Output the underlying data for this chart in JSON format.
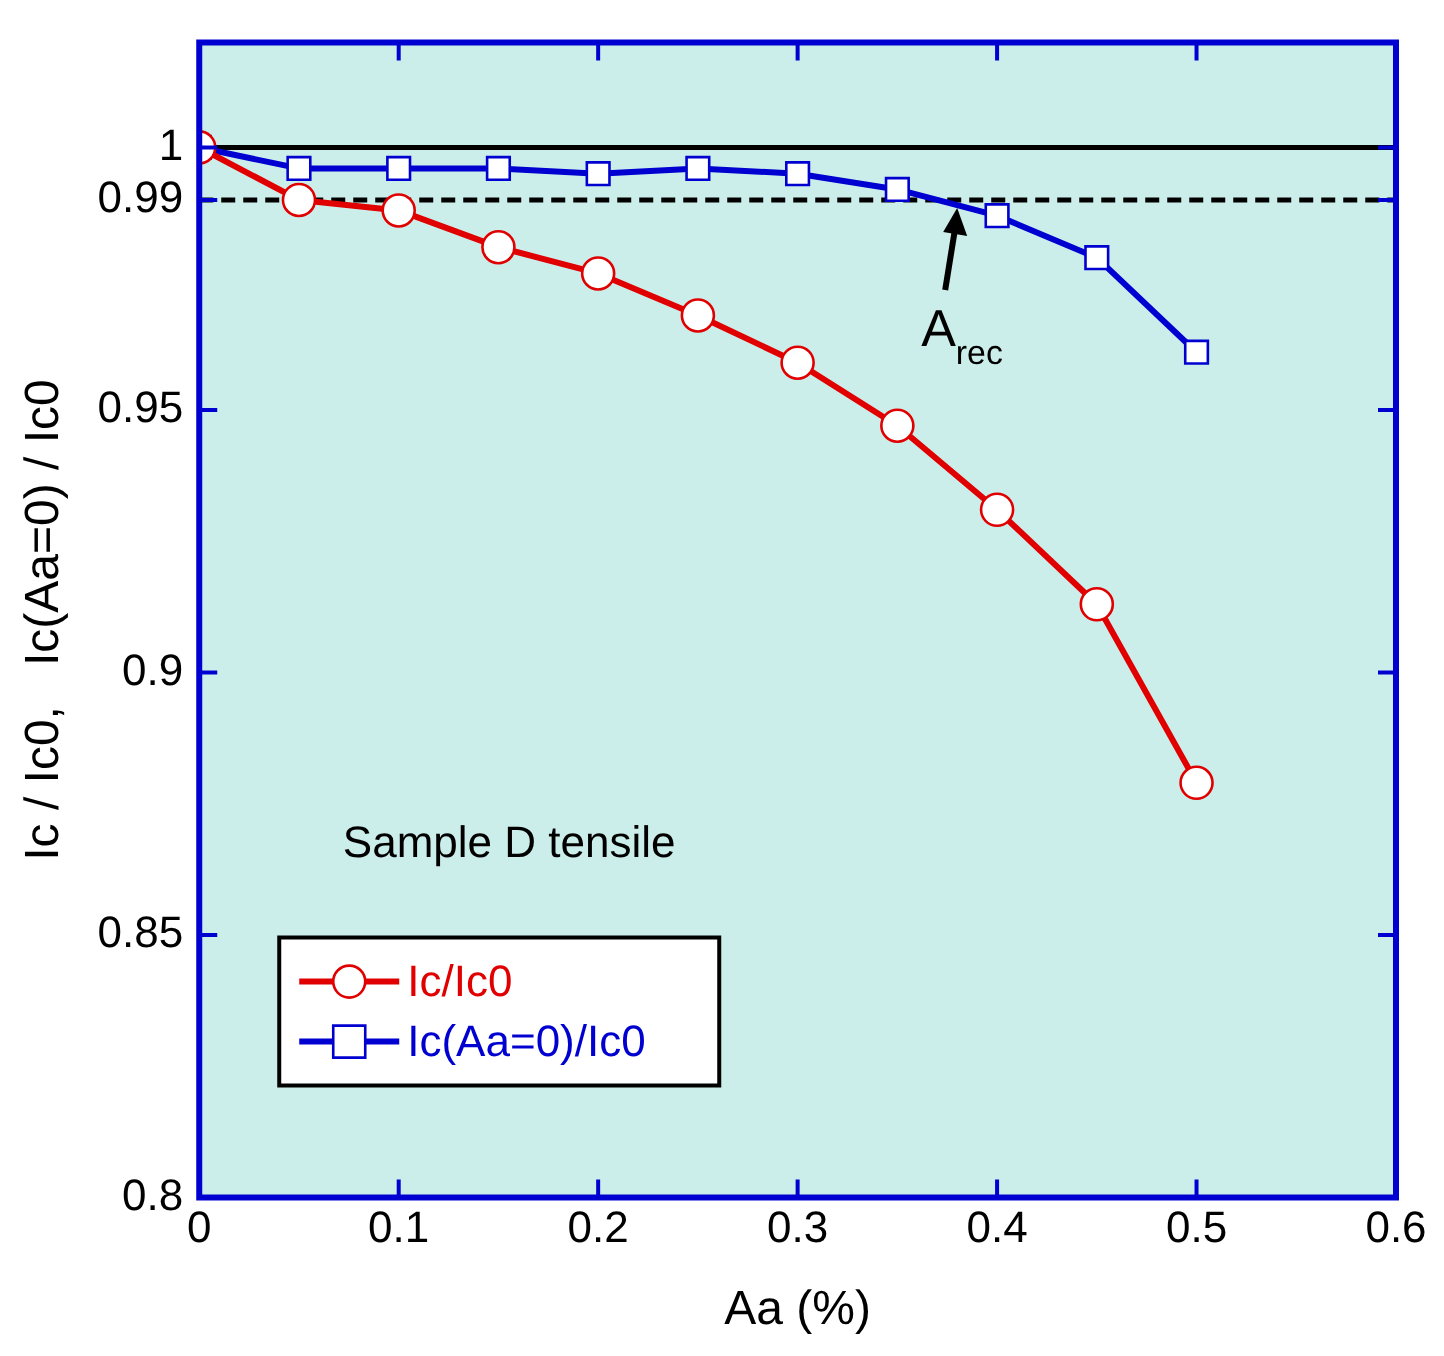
{
  "chart_data": {
    "type": "line",
    "xlabel": "Aa (%)",
    "ylabel": "Ic / Ic0,   Ic(Aa=0) / Ic0",
    "x": [
      0,
      0.05,
      0.1,
      0.15,
      0.2,
      0.25,
      0.3,
      0.35,
      0.4,
      0.45,
      0.5
    ],
    "series": [
      {
        "name": "Ic/Ic0",
        "color": "#e00000",
        "marker": "circle",
        "values": [
          1.0,
          0.99,
          0.988,
          0.981,
          0.976,
          0.968,
          0.959,
          0.947,
          0.931,
          0.913,
          0.879
        ]
      },
      {
        "name": "Ic(Aa=0)/Ic0",
        "color": "#0000d0",
        "marker": "square",
        "values": [
          1.0,
          0.996,
          0.996,
          0.996,
          0.995,
          0.996,
          0.995,
          0.992,
          0.987,
          0.979,
          0.961
        ]
      }
    ],
    "xlim": [
      0,
      0.6
    ],
    "xticks": [
      0,
      0.1,
      0.2,
      0.3,
      0.4,
      0.5,
      0.6
    ],
    "ylim": [
      0.8,
      1.02
    ],
    "yticks": [
      0.8,
      0.85,
      0.9,
      0.95,
      0.99,
      1
    ],
    "ref_lines": [
      {
        "axis": "y",
        "value": 1,
        "color": "#000000",
        "line_style": "solid"
      },
      {
        "axis": "y",
        "value": 0.99,
        "color": "#000000",
        "line_style": "dashed"
      }
    ],
    "annotations": [
      "Sample D tensile",
      {
        "text": "A$_{rec}$",
        "x": 0.38,
        "y": 0.99
      }
    ],
    "legend": "bottom left"
  }
}
